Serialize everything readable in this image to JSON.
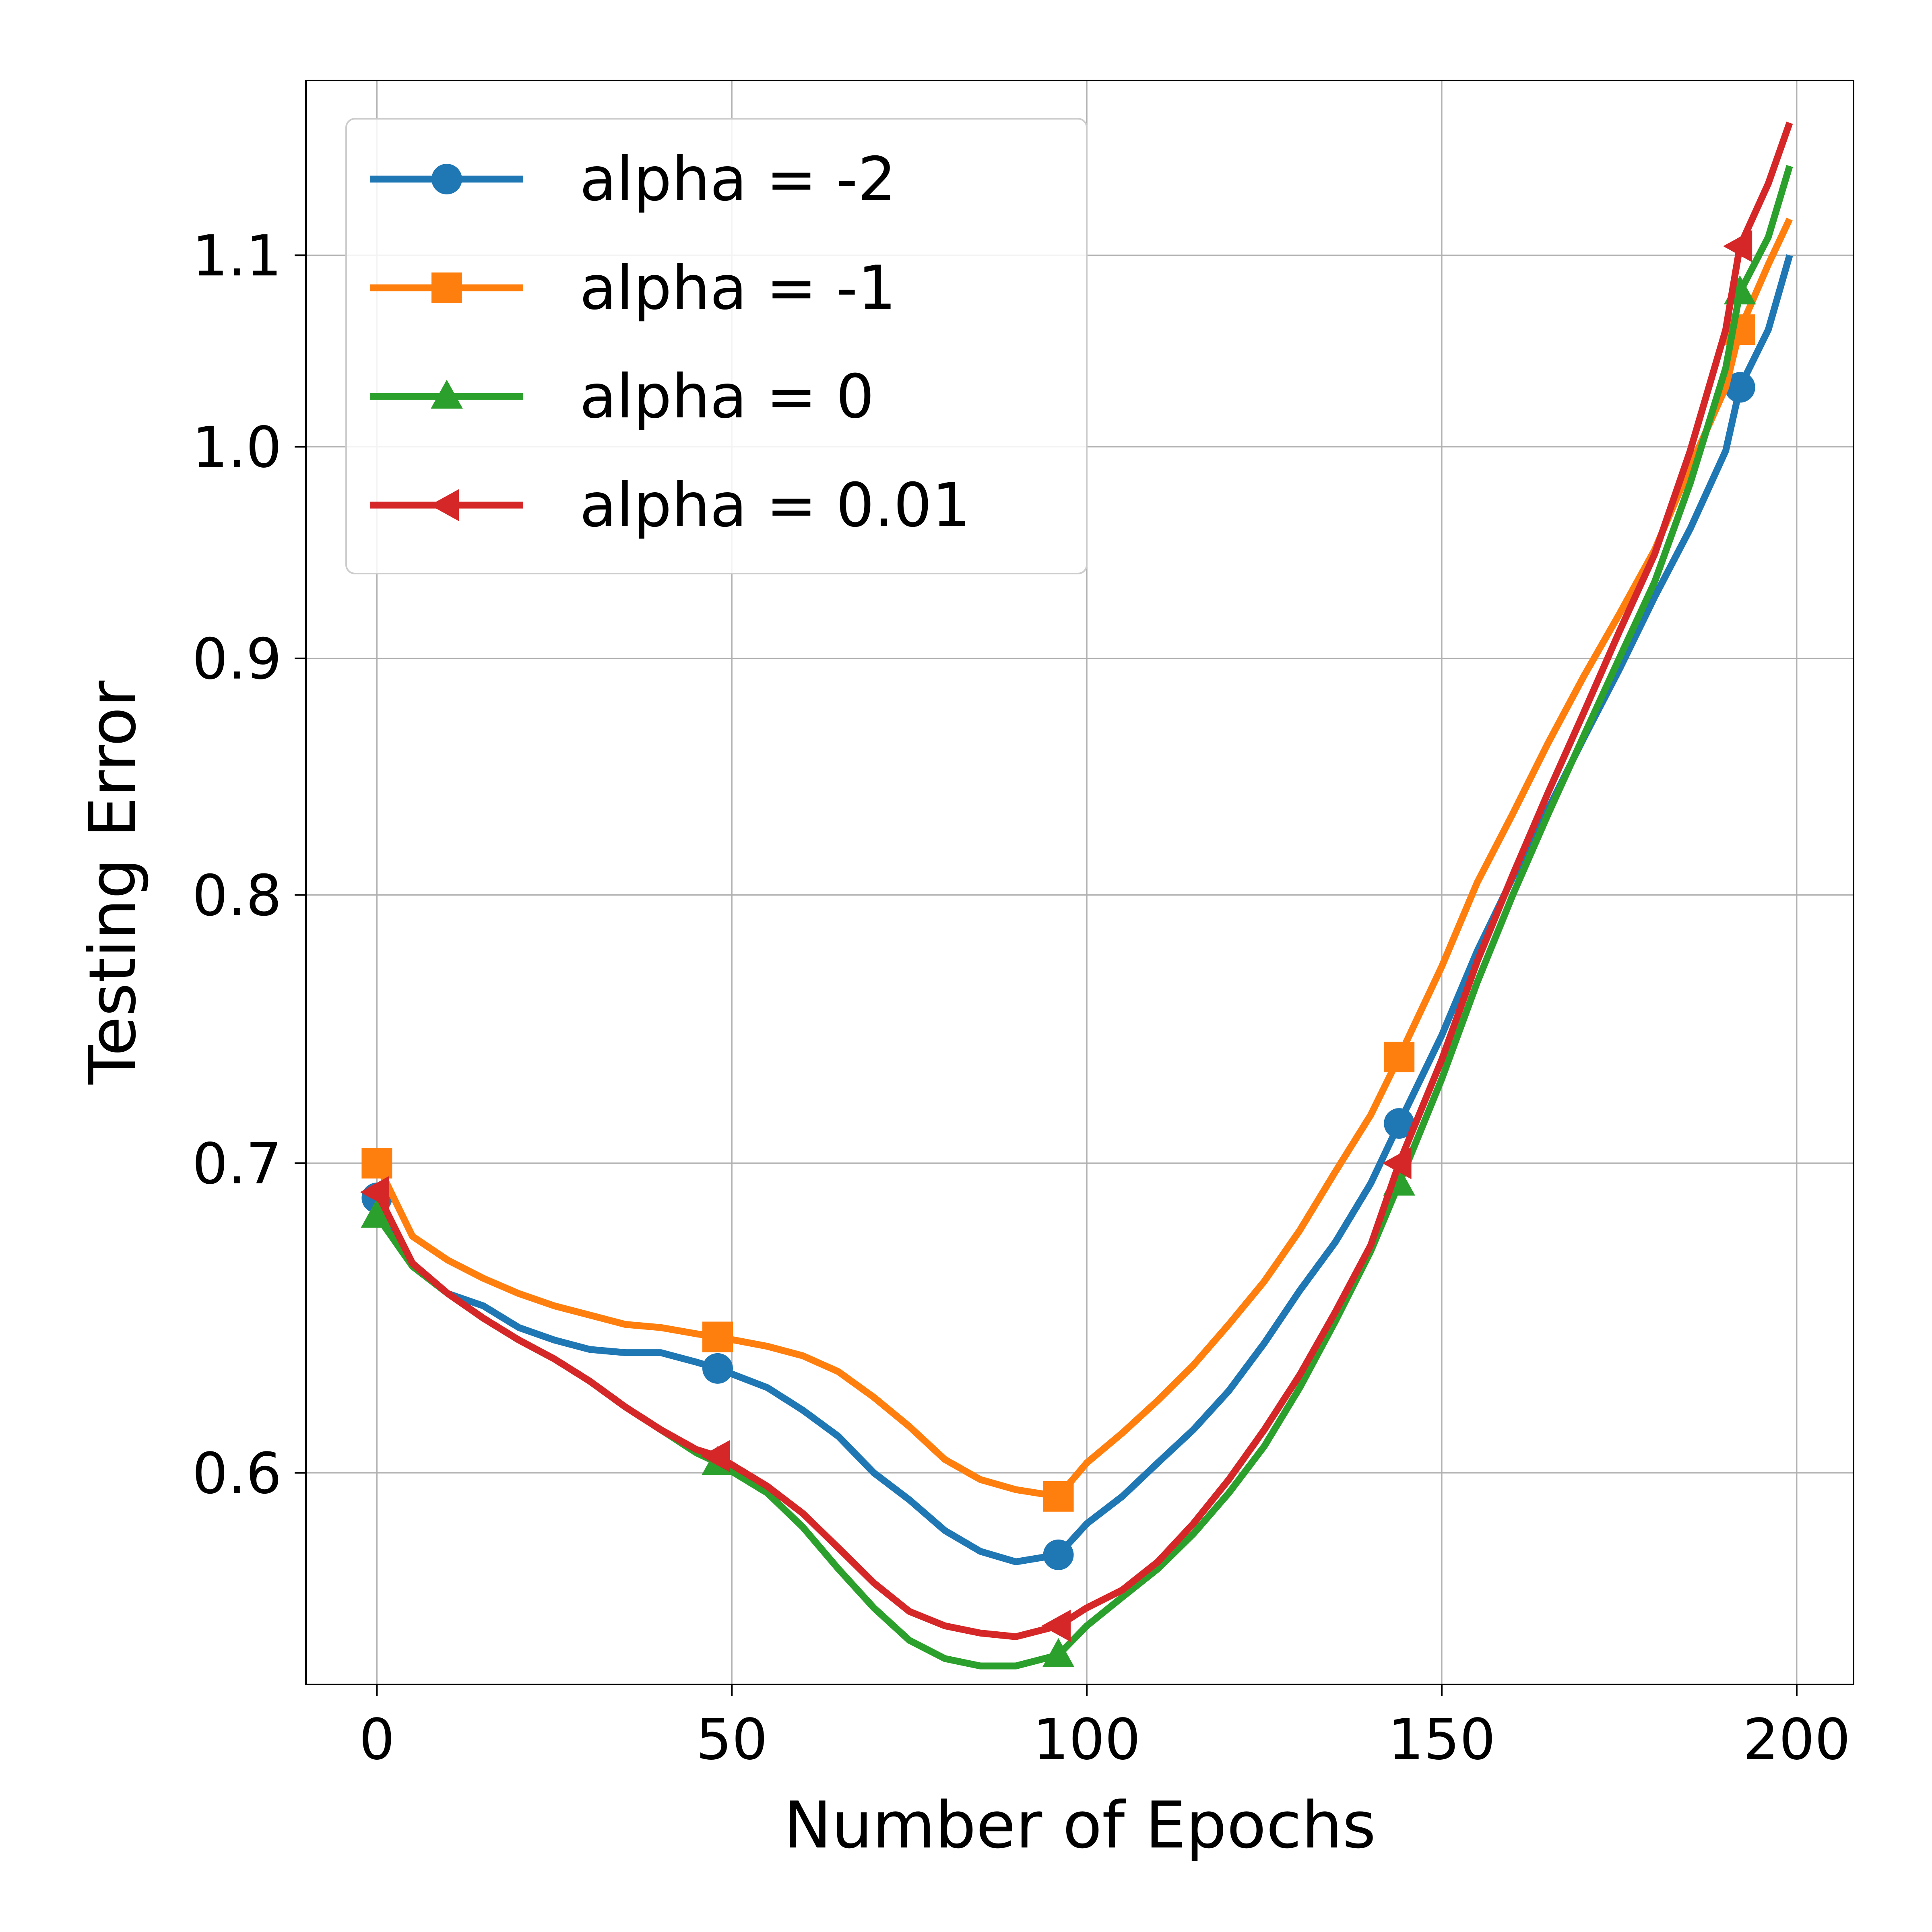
{
  "chart_data": {
    "type": "line",
    "title": "",
    "xlabel": "Number of Epochs",
    "ylabel": "Testing Error",
    "xlim": [
      -10,
      208
    ],
    "ylim": [
      0.54,
      1.2
    ],
    "y_scale": "log",
    "grid": true,
    "legend_position": "top-left",
    "x_ticks": [
      0,
      50,
      100,
      150,
      200
    ],
    "x_tick_labels": [
      "0",
      "50",
      "100",
      "150",
      "200"
    ],
    "y_ticks": [
      0.6,
      0.7,
      0.8,
      0.9,
      1.0,
      1.1
    ],
    "y_tick_labels": [
      "0.6",
      "0.7",
      "0.8",
      "0.9",
      "1.0",
      "1.1"
    ],
    "marker_every": 48,
    "series": [
      {
        "name": "alpha = -2",
        "color": "#1f77b4",
        "marker": "circle",
        "x": [
          0,
          5,
          10,
          15,
          20,
          25,
          30,
          35,
          40,
          45,
          48,
          55,
          60,
          65,
          70,
          75,
          80,
          85,
          90,
          96,
          100,
          105,
          110,
          115,
          120,
          125,
          130,
          135,
          140,
          144,
          150,
          155,
          160,
          165,
          170,
          175,
          180,
          185,
          190,
          192,
          196,
          199
        ],
        "values": [
          0.688,
          0.665,
          0.656,
          0.652,
          0.645,
          0.641,
          0.638,
          0.637,
          0.637,
          0.634,
          0.632,
          0.626,
          0.619,
          0.611,
          0.6,
          0.592,
          0.583,
          0.577,
          0.574,
          0.576,
          0.585,
          0.593,
          0.603,
          0.613,
          0.625,
          0.64,
          0.657,
          0.673,
          0.693,
          0.714,
          0.746,
          0.778,
          0.807,
          0.835,
          0.865,
          0.895,
          0.928,
          0.96,
          0.998,
          1.03,
          1.06,
          1.1
        ]
      },
      {
        "name": "alpha = -1",
        "color": "#ff7f0e",
        "marker": "square",
        "x": [
          0,
          5,
          10,
          15,
          20,
          25,
          30,
          35,
          40,
          45,
          48,
          55,
          60,
          65,
          70,
          75,
          80,
          85,
          90,
          96,
          100,
          105,
          110,
          115,
          120,
          125,
          130,
          135,
          140,
          144,
          150,
          155,
          160,
          165,
          170,
          175,
          180,
          185,
          190,
          192,
          196,
          199
        ],
        "values": [
          0.7,
          0.675,
          0.667,
          0.661,
          0.656,
          0.652,
          0.649,
          0.646,
          0.645,
          0.643,
          0.642,
          0.639,
          0.636,
          0.631,
          0.623,
          0.614,
          0.604,
          0.598,
          0.595,
          0.593,
          0.603,
          0.612,
          0.622,
          0.633,
          0.646,
          0.66,
          0.677,
          0.697,
          0.717,
          0.738,
          0.772,
          0.805,
          0.833,
          0.863,
          0.892,
          0.92,
          0.95,
          0.99,
          1.03,
          1.06,
          1.095,
          1.12
        ]
      },
      {
        "name": "alpha = 0",
        "color": "#2ca02c",
        "marker": "triangle",
        "x": [
          0,
          5,
          10,
          15,
          20,
          25,
          30,
          35,
          40,
          45,
          48,
          55,
          60,
          65,
          70,
          75,
          80,
          85,
          90,
          96,
          100,
          105,
          110,
          115,
          120,
          125,
          130,
          135,
          140,
          144,
          150,
          155,
          160,
          165,
          170,
          175,
          180,
          185,
          190,
          192,
          196,
          199
        ],
        "values": [
          0.682,
          0.665,
          0.656,
          0.648,
          0.641,
          0.635,
          0.628,
          0.62,
          0.613,
          0.606,
          0.603,
          0.594,
          0.584,
          0.572,
          0.561,
          0.552,
          0.547,
          0.545,
          0.545,
          0.548,
          0.556,
          0.564,
          0.572,
          0.582,
          0.594,
          0.608,
          0.626,
          0.647,
          0.67,
          0.693,
          0.73,
          0.766,
          0.8,
          0.833,
          0.866,
          0.9,
          0.935,
          0.982,
          1.04,
          1.08,
          1.11,
          1.15
        ]
      },
      {
        "name": "alpha = 0.01",
        "color": "#d62728",
        "marker": "triangle-left",
        "x": [
          0,
          5,
          10,
          15,
          20,
          25,
          30,
          35,
          40,
          45,
          48,
          55,
          60,
          65,
          70,
          75,
          80,
          85,
          90,
          96,
          100,
          105,
          110,
          115,
          120,
          125,
          130,
          135,
          140,
          144,
          150,
          155,
          160,
          165,
          170,
          175,
          180,
          185,
          190,
          192,
          196,
          199
        ],
        "values": [
          0.69,
          0.666,
          0.656,
          0.648,
          0.641,
          0.635,
          0.628,
          0.62,
          0.613,
          0.607,
          0.605,
          0.596,
          0.588,
          0.578,
          0.568,
          0.56,
          0.556,
          0.554,
          0.553,
          0.556,
          0.561,
          0.566,
          0.574,
          0.585,
          0.598,
          0.613,
          0.63,
          0.65,
          0.672,
          0.7,
          0.737,
          0.774,
          0.808,
          0.842,
          0.876,
          0.912,
          0.948,
          0.998,
          1.06,
          1.105,
          1.14,
          1.175
        ]
      }
    ]
  }
}
